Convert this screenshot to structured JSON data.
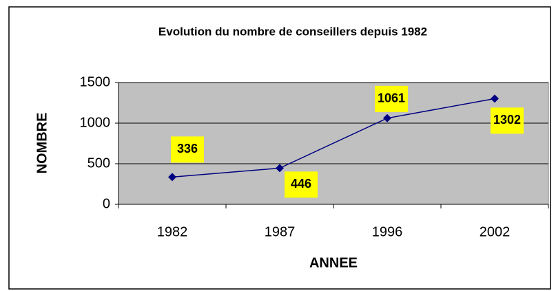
{
  "chart_data": {
    "type": "line",
    "title": "Evolution du nombre de conseillers depuis 1982",
    "x_label": "ANNEE",
    "y_label": "NOMBRE",
    "categories": [
      "1982",
      "1987",
      "1996",
      "2002"
    ],
    "values": [
      336,
      446,
      1061,
      1302
    ],
    "color": "#000080",
    "ylim": [
      0,
      1500
    ],
    "yticks": [
      0,
      500,
      1000,
      1500
    ],
    "grid": true
  }
}
